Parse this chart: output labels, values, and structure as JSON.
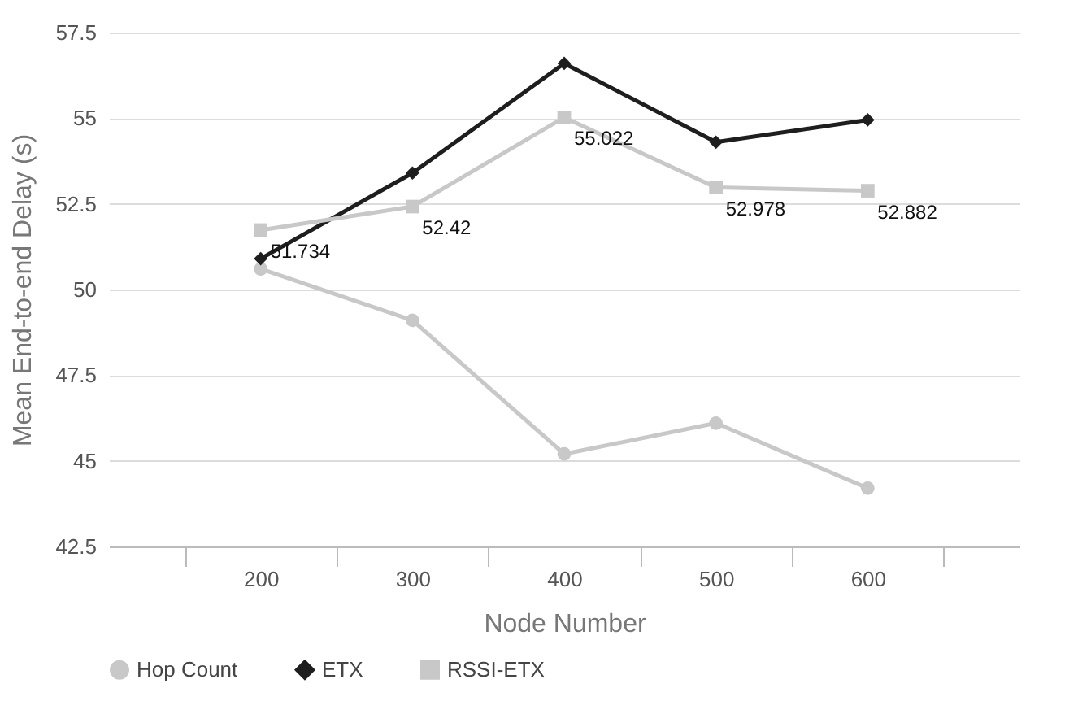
{
  "chart_data": {
    "type": "line",
    "xlabel": "Node Number",
    "ylabel": "Mean End-to-end Delay (s)",
    "categories": [
      "200",
      "300",
      "400",
      "500",
      "600"
    ],
    "ylim": [
      42.5,
      57.5
    ],
    "yticks": [
      42.5,
      45,
      47.5,
      50,
      52.5,
      55,
      57.5
    ],
    "grid": "y",
    "legend": "bottom",
    "series": [
      {
        "name": "Hop Count",
        "color": "#c8c8c8",
        "marker": "circle",
        "values": [
          50.6,
          49.1,
          45.2,
          46.1,
          44.2
        ]
      },
      {
        "name": "ETX",
        "color": "#1e1e1e",
        "marker": "diamond",
        "values": [
          50.9,
          53.4,
          56.6,
          54.3,
          54.95
        ]
      },
      {
        "name": "RSSI-ETX",
        "color": "#c8c8c8",
        "marker": "square",
        "values": [
          51.734,
          52.42,
          55.022,
          52.978,
          52.882
        ],
        "value_labels": [
          "51.734",
          "52.42",
          "55.022",
          "52.978",
          "52.882"
        ]
      }
    ]
  }
}
